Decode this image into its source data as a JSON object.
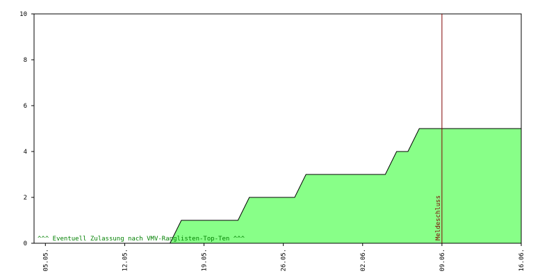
{
  "chart_data": {
    "type": "area",
    "x": [
      "04.05.",
      "16.05.",
      "17.05.",
      "22.05.",
      "23.05.",
      "27.05.",
      "28.05.",
      "04.06.",
      "05.06.",
      "06.06.",
      "07.06.",
      "16.06."
    ],
    "values": [
      0,
      0,
      1,
      1,
      2,
      2,
      3,
      3,
      4,
      4,
      5,
      5
    ],
    "color": "#88ff88",
    "line_color": "#000000",
    "xlim": [
      "04.05.",
      "16.06."
    ],
    "xticks": [
      "05.05.",
      "12.05.",
      "19.05.",
      "26.05.",
      "02.06.",
      "09.06.",
      "16.06."
    ],
    "ylim": [
      0,
      10
    ],
    "yticks": [
      0,
      2,
      4,
      6,
      8,
      10
    ],
    "marker_line": {
      "x": "09.06.",
      "label": "Meldeschluss",
      "color": "#800000"
    },
    "annotation": {
      "text": "^^^ Eventuell Zulassung nach VMV-Ranglisten-Top-Ten ^^^",
      "color": "#008000"
    }
  }
}
